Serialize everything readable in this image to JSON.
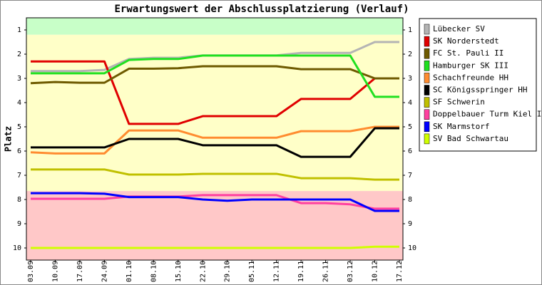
{
  "chart_data": {
    "type": "line",
    "title": "Erwartungswert der Abschlussplatzierung (Verlauf)",
    "y_label": "Platz",
    "categories": [
      "03.09",
      "10.09",
      "17.09",
      "24.09",
      "01.10",
      "08.10",
      "15.10",
      "22.10",
      "29.10",
      "05.11",
      "12.11",
      "19.11",
      "26.11",
      "03.12",
      "10.12",
      "17.12"
    ],
    "ylim": [
      10.5,
      0.5
    ],
    "yticks": [
      1,
      2,
      3,
      4,
      5,
      6,
      7,
      8,
      9,
      10
    ],
    "bands": [
      {
        "from": 0.5,
        "to": 1.2,
        "color": "#c8ffc8"
      },
      {
        "from": 1.2,
        "to": 7.65,
        "color": "#ffffc8"
      },
      {
        "from": 7.65,
        "to": 10.5,
        "color": "#ffc8c8"
      }
    ],
    "series": [
      {
        "name": "Lübecker SV",
        "color": "#b4b4b4",
        "values": [
          2.7,
          2.7,
          2.7,
          2.65,
          2.2,
          2.15,
          2.15,
          2.05,
          2.05,
          2.05,
          2.05,
          1.95,
          1.95,
          1.95,
          1.5,
          1.5
        ]
      },
      {
        "name": "SK Norderstedt",
        "color": "#e00000",
        "values": [
          2.3,
          2.3,
          2.3,
          2.3,
          4.88,
          4.88,
          4.88,
          4.56,
          4.56,
          4.56,
          4.56,
          3.85,
          3.85,
          3.85,
          3.0,
          3.0
        ]
      },
      {
        "name": "FC St. Pauli II",
        "color": "#6e5a00",
        "values": [
          3.2,
          3.15,
          3.18,
          3.18,
          2.6,
          2.6,
          2.58,
          2.5,
          2.5,
          2.5,
          2.5,
          2.62,
          2.62,
          2.62,
          3.0,
          3.0
        ]
      },
      {
        "name": "Hamburger SK III",
        "color": "#20e020",
        "values": [
          2.79,
          2.79,
          2.79,
          2.79,
          2.24,
          2.2,
          2.2,
          2.06,
          2.06,
          2.06,
          2.06,
          2.06,
          2.06,
          2.06,
          3.76,
          3.76
        ]
      },
      {
        "name": "Schachfreunde HH",
        "color": "#ff8c30",
        "values": [
          6.05,
          6.1,
          6.1,
          6.1,
          5.15,
          5.15,
          5.15,
          5.45,
          5.45,
          5.45,
          5.45,
          5.18,
          5.18,
          5.18,
          5.0,
          5.0
        ]
      },
      {
        "name": "SC Königsspringer HH",
        "color": "#000000",
        "values": [
          5.85,
          5.85,
          5.85,
          5.85,
          5.5,
          5.5,
          5.5,
          5.76,
          5.76,
          5.76,
          5.76,
          6.24,
          6.24,
          6.24,
          5.06,
          5.06
        ]
      },
      {
        "name": "SF Schwerin",
        "color": "#c0c000",
        "values": [
          6.76,
          6.76,
          6.76,
          6.76,
          6.97,
          6.97,
          6.97,
          6.94,
          6.94,
          6.94,
          6.94,
          7.12,
          7.12,
          7.12,
          7.18,
          7.18
        ]
      },
      {
        "name": "Doppelbauer Turm Kiel II",
        "color": "#ff40a0",
        "values": [
          7.97,
          7.97,
          7.97,
          7.97,
          7.88,
          7.88,
          7.88,
          7.82,
          7.82,
          7.82,
          7.82,
          8.15,
          8.15,
          8.2,
          8.38,
          8.38
        ]
      },
      {
        "name": "SK Marmstorf",
        "color": "#0000ff",
        "values": [
          7.74,
          7.74,
          7.74,
          7.76,
          7.9,
          7.9,
          7.9,
          8.0,
          8.05,
          8.0,
          8.0,
          8.0,
          8.0,
          8.0,
          8.47,
          8.47
        ]
      },
      {
        "name": "SV Bad Schwartau",
        "color": "#d0ff00",
        "values": [
          10.0,
          10.0,
          10.0,
          10.0,
          10.0,
          10.0,
          10.0,
          10.0,
          10.0,
          10.0,
          10.0,
          10.0,
          10.0,
          10.0,
          9.95,
          9.95
        ]
      }
    ]
  }
}
